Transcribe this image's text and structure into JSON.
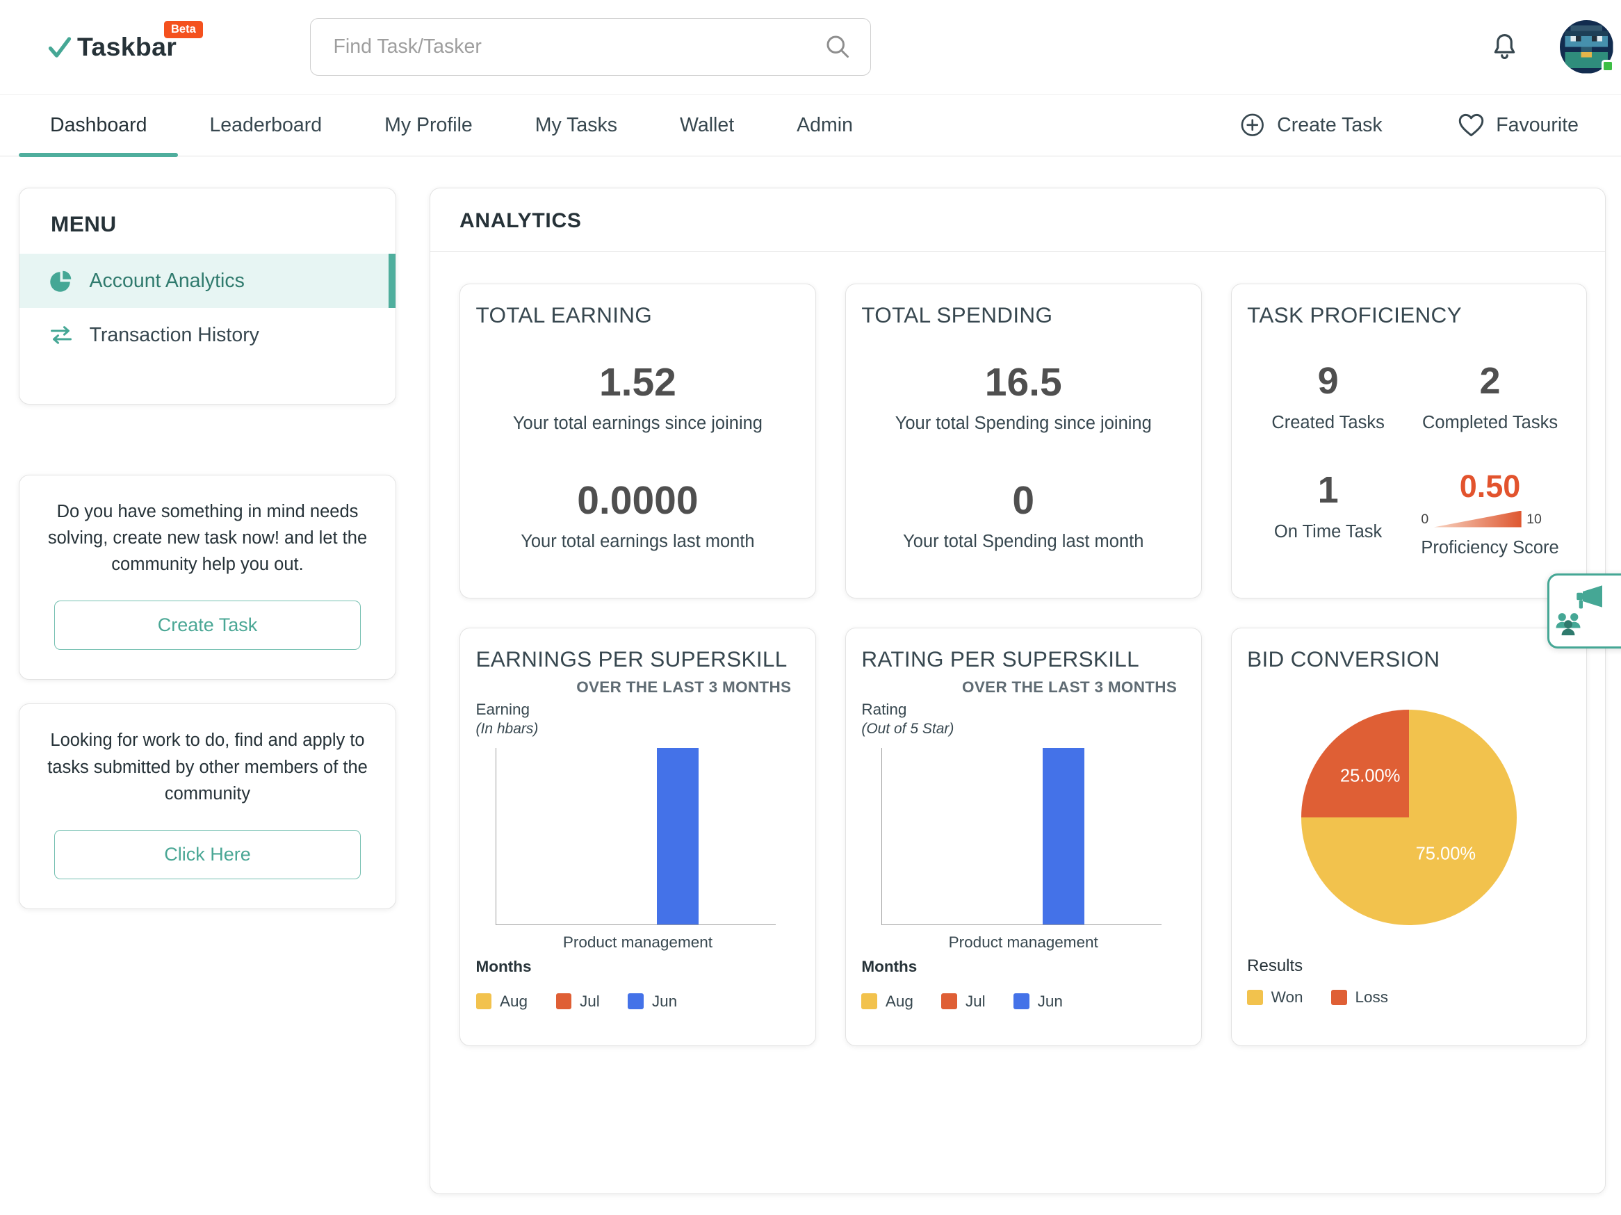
{
  "brand": {
    "name": "Taskbar",
    "beta": "Beta"
  },
  "header": {
    "search_placeholder": "Find Task/Tasker"
  },
  "nav": {
    "tabs": [
      {
        "label": "Dashboard"
      },
      {
        "label": "Leaderboard"
      },
      {
        "label": "My Profile"
      },
      {
        "label": "My Tasks"
      },
      {
        "label": "Wallet"
      },
      {
        "label": "Admin"
      }
    ],
    "active_tab": "Dashboard",
    "create_task": "Create Task",
    "favourite": "Favourite"
  },
  "sidebar": {
    "menu_title": "MENU",
    "items": [
      {
        "label": "Account Analytics",
        "active": true
      },
      {
        "label": "Transaction History",
        "active": false
      }
    ],
    "promo_create": {
      "text": "Do you have something in mind needs solving, create new task now! and let the community help you out.",
      "button": "Create Task"
    },
    "promo_find": {
      "text": "Looking for work to do, find and apply to tasks submitted by other members of the community",
      "button": "Click Here"
    }
  },
  "analytics": {
    "title": "ANALYTICS",
    "total_earning": {
      "title": "TOTAL EARNING",
      "rows": [
        {
          "value": "1.52",
          "label": "Your total earnings since joining"
        },
        {
          "value": "0.0000",
          "label": "Your total earnings last month"
        }
      ]
    },
    "total_spending": {
      "title": "TOTAL SPENDING",
      "rows": [
        {
          "value": "16.5",
          "label": "Your total Spending since joining"
        },
        {
          "value": "0",
          "label": "Your total Spending last month"
        }
      ]
    },
    "task_proficiency": {
      "title": "TASK PROFICIENCY",
      "stats": [
        {
          "value": "9",
          "label": "Created Tasks"
        },
        {
          "value": "2",
          "label": "Completed Tasks"
        },
        {
          "value": "1",
          "label": "On Time Task"
        }
      ],
      "score": {
        "value": "0.50",
        "label": "Proficiency Score",
        "min": "0",
        "max": "10"
      }
    }
  },
  "chart_data": [
    {
      "id": "earnings-per-superskill",
      "type": "bar",
      "title": "EARNINGS PER SUPERSKILL",
      "subtitle": "OVER THE LAST 3 MONTHS",
      "ylabel": "Earning",
      "ylabel_note": "(In hbars)",
      "xlabel": "Months",
      "categories": [
        "Product management"
      ],
      "value_format": "relative fraction of plot height (no numeric axis ticks shown)",
      "series": [
        {
          "name": "Aug",
          "color": "#F2C24D",
          "values": [
            0
          ]
        },
        {
          "name": "Jul",
          "color": "#DF5F35",
          "values": [
            0
          ]
        },
        {
          "name": "Jun",
          "color": "#4472E8",
          "values": [
            1
          ]
        }
      ]
    },
    {
      "id": "rating-per-superskill",
      "type": "bar",
      "title": "RATING PER SUPERSKILL",
      "subtitle": "OVER THE LAST 3 MONTHS",
      "ylabel": "Rating",
      "ylabel_note": "(Out of 5 Star)",
      "xlabel": "Months",
      "categories": [
        "Product management"
      ],
      "value_format": "relative fraction of plot height (no numeric axis ticks shown)",
      "series": [
        {
          "name": "Aug",
          "color": "#F2C24D",
          "values": [
            0
          ]
        },
        {
          "name": "Jul",
          "color": "#DF5F35",
          "values": [
            0
          ]
        },
        {
          "name": "Jun",
          "color": "#4472E8",
          "values": [
            1
          ]
        }
      ]
    },
    {
      "id": "bid-conversion",
      "type": "pie",
      "title": "BID CONVERSION",
      "labels": [
        "Won",
        "Loss"
      ],
      "values": [
        75,
        25
      ],
      "value_labels": [
        "75.00%",
        "25.00%"
      ],
      "colors": [
        "#F2C24D",
        "#DF5F35"
      ],
      "legend_title": "Results"
    }
  ],
  "colors": {
    "accent": "#47A796",
    "accent_light": "#E7F5F3",
    "beta_badge": "#F4511E",
    "bar_blue": "#4472E8",
    "pie_yellow": "#F2C24D",
    "pie_orange": "#DF5F35",
    "score_orange": "#E2532D"
  }
}
